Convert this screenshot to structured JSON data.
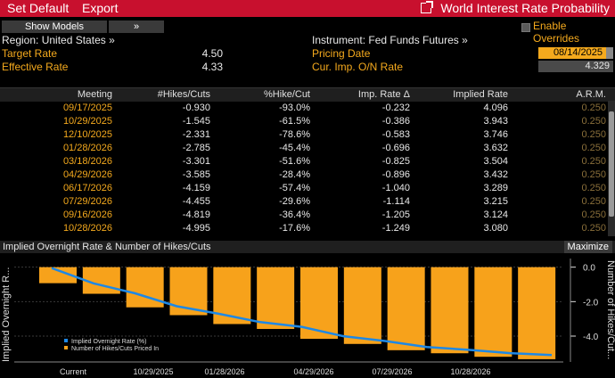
{
  "toolbar": {
    "set_default": "Set Default",
    "export": "Export",
    "title": "World Interest Rate Probability"
  },
  "controls": {
    "show_models": "Show Models",
    "expand": "»",
    "enable_overrides": "Enable Overrides"
  },
  "info": {
    "region": "Region: United States »",
    "instrument": "Instrument: Fed Funds Futures »",
    "target_label": "Target Rate",
    "target_value": "4.50",
    "effective_label": "Effective Rate",
    "effective_value": "4.33",
    "pricing_label": "Pricing Date",
    "pricing_value": "08/14/2025",
    "curimp_label": "Cur. Imp. O/N Rate",
    "curimp_value": "4.329"
  },
  "table": {
    "headers": [
      "Meeting",
      "#Hikes/Cuts",
      "%Hike/Cut",
      "Imp. Rate Δ",
      "Implied Rate",
      "A.R.M."
    ],
    "rows": [
      [
        "09/17/2025",
        "-0.930",
        "-93.0%",
        "-0.232",
        "4.096",
        "0.250"
      ],
      [
        "10/29/2025",
        "-1.545",
        "-61.5%",
        "-0.386",
        "3.943",
        "0.250"
      ],
      [
        "12/10/2025",
        "-2.331",
        "-78.6%",
        "-0.583",
        "3.746",
        "0.250"
      ],
      [
        "01/28/2026",
        "-2.785",
        "-45.4%",
        "-0.696",
        "3.632",
        "0.250"
      ],
      [
        "03/18/2026",
        "-3.301",
        "-51.6%",
        "-0.825",
        "3.504",
        "0.250"
      ],
      [
        "04/29/2026",
        "-3.585",
        "-28.4%",
        "-0.896",
        "3.432",
        "0.250"
      ],
      [
        "06/17/2026",
        "-4.159",
        "-57.4%",
        "-1.040",
        "3.289",
        "0.250"
      ],
      [
        "07/29/2026",
        "-4.455",
        "-29.6%",
        "-1.114",
        "3.215",
        "0.250"
      ],
      [
        "09/16/2026",
        "-4.819",
        "-36.4%",
        "-1.205",
        "3.124",
        "0.250"
      ],
      [
        "10/28/2026",
        "-4.995",
        "-17.6%",
        "-1.249",
        "3.080",
        "0.250"
      ]
    ]
  },
  "chart_header": {
    "title": "Implied Overnight Rate & Number of Hikes/Cuts",
    "maximize": "Maximize"
  },
  "chart_data": {
    "type": "bar",
    "left_axis_label": "Implied Overnight R...",
    "right_axis_label": "Number of Hikes/Cut...",
    "x_ticks": [
      "Current",
      "10/29/2025",
      "01/28/2026",
      "04/29/2026",
      "07/29/2026",
      "10/28/2026"
    ],
    "y_right_ticks": [
      "0.0",
      "-2.0",
      "-4.0"
    ],
    "y_right_range": [
      -5.5,
      0.5
    ],
    "legend": [
      "Implied Overnight Rate (%)",
      "Number of Hikes/Cuts Priced In"
    ],
    "bar_series": [
      -0.93,
      -1.545,
      -2.331,
      -2.785,
      -3.301,
      -3.585,
      -4.159,
      -4.455,
      -4.819,
      -4.995,
      -5.2,
      -5.34
    ],
    "line_series": [
      4.329,
      4.096,
      3.943,
      3.746,
      3.632,
      3.504,
      3.432,
      3.289,
      3.215,
      3.124,
      3.08,
      3.03,
      3.0
    ],
    "line_range": [
      2.95,
      4.42
    ],
    "colors": {
      "bar": "#f7a21b",
      "line": "#1e88e5",
      "grid": "#3a3a3a",
      "axis_text": "#dddddd"
    }
  }
}
